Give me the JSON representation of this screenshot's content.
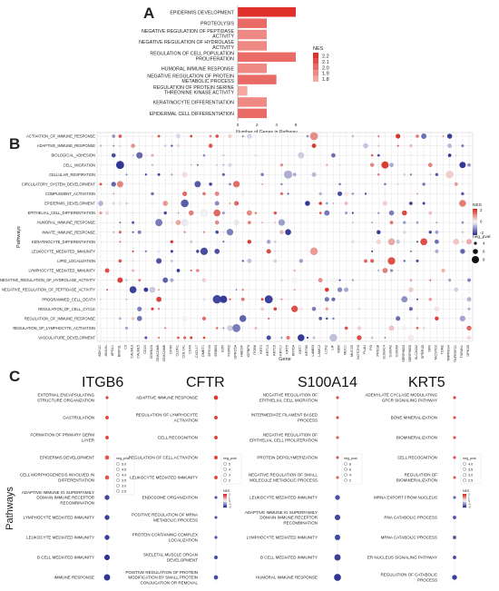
{
  "panels": {
    "a": "A",
    "b": "B",
    "c": "C"
  },
  "colors": {
    "red": "#d73027",
    "blue": "#313695",
    "white": "#f7f7f7",
    "grid": "#e4e4e4"
  },
  "chart_data": [
    {
      "panel": "A",
      "type": "bar",
      "orientation": "horizontal",
      "categories": [
        "EPIDERMIS DEVELOPMENT",
        "PROTEOLYSIS",
        "NEGATIVE REGULATION OF PEPTIDASE ACTIVITY",
        "NEGATIVE REGULATION OF HYDROLASE ACTIVITY",
        "REGULATION OF CELL POPULATION PROLIFERATION",
        "HUMORAL IMMUNE RESPONSE",
        "NEGATIVE REGULATION OF PROTEIN METABOLIC PROCESS",
        "REGULATION OF PROTEIN SERINE THREONINE KINASE ACTIVITY",
        "KERATINOCYTE DIFFERENTIATION",
        "EPIDERMAL CELL DIFFERENTIATION"
      ],
      "values": [
        6,
        3,
        3,
        3,
        6,
        3,
        4,
        1,
        3,
        3
      ],
      "nes": [
        2.2,
        2.0,
        1.9,
        1.9,
        2.0,
        1.9,
        2.0,
        1.8,
        1.9,
        2.0
      ],
      "xlabel": "Number of Genes in Pathway",
      "xlim": [
        0,
        6
      ],
      "xticks": [
        "0",
        "2",
        "4",
        "6"
      ],
      "legend": {
        "title": "NES",
        "ticks": [
          "2.2",
          "2.1",
          "2.0",
          "1.9",
          "1.8"
        ],
        "placement": "right"
      }
    },
    {
      "panel": "B",
      "type": "scatter",
      "subtype": "dot-plot",
      "xlabel": "Gene",
      "ylabel": "Pathways",
      "rows": [
        "ACTIVATION_OF_IMMUNE_RESPONSE",
        "ADAPTIVE_IMMUNE_RESPONSE",
        "BIOLOGICAL_ADHESION",
        "CELL_MIGRATION",
        "CELLULAR_RESPIRATION",
        "CIRCULATORY_SYSTEM_DEVELOPMENT",
        "COMPLEMENT_ACTIVATION",
        "EPIDERMIS_DEVELOPMENT",
        "EPITHELIAL_CELL_DIFFERENTIATION",
        "HUMORAL_IMMUNE_RESPONSE",
        "INNATE_IMMUNE_RESPONSE",
        "KERATINOCYTE_DIFFERENTIATION",
        "LEUKOCYTE_MEDIATED_IMMUNITY",
        "LIPID_LOCALIZATION",
        "LYMPHOCYTE_MEDIATED_IMMUNITY",
        "NEGATIVE_REGULATION_OF_HYDROLASE_ACTIVITY",
        "NEGATIVE_REGULATION_OF_PEPTIDASE_ACTIVITY",
        "PROGRAMMED_CELL_DEATH",
        "REGULATION_OF_CELL_CYCLE",
        "REGULATION_OF_IMMUNE_RESPONSE",
        "REGULATION_OF_LYMPHOCYTE_ACTIVATION",
        "VASCULATURE_DEVELOPMENT"
      ],
      "columns": [
        "ADH1C",
        "ANXA1",
        "APOL1",
        "BNIP3L",
        "C3",
        "CALML3",
        "CALML5",
        "CD24",
        "CDKN2A",
        "CEACAM5",
        "CEACAM6",
        "CFTR",
        "CLDN1",
        "COL7A1",
        "CSTA",
        "CXCL17",
        "DMBT1",
        "EPHX3",
        "ERBB3",
        "EZR",
        "FGFR2",
        "GPRC5A",
        "HBEGF",
        "IGFBP3",
        "ITGB6",
        "KRT4",
        "KRT13",
        "KRT15",
        "KRT17",
        "KRT5",
        "KRT6A",
        "KRT7",
        "KRT80",
        "LAMB3",
        "LAMC2",
        "LCN2",
        "LIF",
        "MDK",
        "MUC1",
        "MUC20",
        "NOTCH3",
        "PLAU",
        "PI3",
        "PRSS8",
        "S100A14",
        "S100A2",
        "S100A9",
        "SERPINB3",
        "SERPINB5",
        "SLC34A2",
        "SPRR1B",
        "SFN",
        "TACSTD2",
        "TGM2",
        "TMPRSS4",
        "TNFRSF21",
        "TSPAN1",
        "UPK1B"
      ],
      "points_note": "dots colored by NES, sized by neg_pval",
      "legend_nes": {
        "title": "NES",
        "ticks": [
          "2",
          "0",
          "-2"
        ]
      },
      "legend_size": {
        "title": "neg_pval",
        "ticks": [
          "4",
          "6",
          "8"
        ]
      }
    },
    {
      "panel": "C",
      "type": "scatter",
      "subtype": "dot-plot",
      "ylabel": "Pathways",
      "subplots": [
        {
          "title": "ITGB6",
          "pathways": [
            "EXTERNAL ENCAPSULATING STRUCTURE ORGANIZATION",
            "GASTRULATION",
            "FORMATION OF PRIMARY GERM LAYER",
            "EPIDERMIS DEVELOPMENT",
            "CELL MORPHOGENESIS INVOLVED IN DIFFERENTIATION",
            "ADAPTIVE IMMUNE IG SUPERFAMILY DOMAIN IMMUNE RECEPTOR RECOMBINATION",
            "LYMPHOCYTE MEDIATED IMMUNITY",
            "LEUKOCYTE MEDIATED IMMUNITY",
            "B CELL MEDIATED IMMUNITY",
            "IMMUNE RESPONSE"
          ],
          "nes": [
            2.0,
            1.9,
            1.9,
            1.8,
            1.8,
            -2.0,
            -2.1,
            -2.1,
            -2.2,
            -2.4
          ],
          "neg_pval": [
            2.5,
            3.0,
            3.0,
            3.5,
            3.5,
            4.0,
            4.0,
            4.0,
            4.5,
            5.0
          ],
          "legend_size": {
            "title": "neg_pval",
            "ticks": [
              "5.0",
              "4.5",
              "4.0",
              "3.5",
              "3.0",
              "2.5"
            ]
          }
        },
        {
          "title": "CFTR",
          "pathways": [
            "ADAPTIVE IMMUNE RESPONSE",
            "REGULATION OF LYMPHOCYTE ACTIVATION",
            "CELL RECOGNITION",
            "REGULATION OF CELL ACTIVATION",
            "LEUKOCYTE MEDIATED IMMUNITY",
            "ENDOSOME ORGANIZATION",
            "POSITIVE REGULATION OF MRNA METABOLIC PROCESS",
            "PROTEIN CONTAINING COMPLEX LOCALIZATION",
            "SKELETAL MUSCLE ORGAN DEVELOPMENT",
            "POSITIVE REGULATION OF PROTEIN MODIFICATION BY SMALL PROTEIN CONJUGATION OR REMOVAL"
          ],
          "nes": [
            2.1,
            2.0,
            2.0,
            2.0,
            1.9,
            -1.8,
            -1.8,
            -1.9,
            -2.0,
            -2.0
          ],
          "neg_pval": [
            3.5,
            3.0,
            3.0,
            3.0,
            3.0,
            2.5,
            2.5,
            2.5,
            3.0,
            3.5
          ],
          "legend_size": {
            "title": "neg_pval",
            "ticks": [
              "5",
              "4",
              "3",
              "2"
            ]
          },
          "legend_nes": {
            "title": "NES",
            "ticks": [
              "2",
              "1",
              "0",
              "-1",
              "-2"
            ]
          }
        },
        {
          "title": "S100A14",
          "pathways": [
            "NEGATIVE REGULATION OF EPITHELIAL CELL MIGRATION",
            "INTERMEDIATE FILAMENT BASED PROCESS",
            "NEGATIVE REGULATION OF EPITHELIAL CELL PROLIFERATION",
            "PROTEIN DEPOLYMERIZATION",
            "NEGATIVE REGULATION OF SMALL MOLECULE METABOLIC PROCESS",
            "LEUKOCYTE MEDIATED IMMUNITY",
            "ADAPTIVE IMMUNE IG SUPERFAMILY DOMAIN IMMUNE RECEPTOR RECOMBINATION",
            "LYMPHOCYTE MEDIATED IMMUNITY",
            "B CELL MEDIATED IMMUNITY",
            "HUMORAL IMMUNE RESPONSE"
          ],
          "nes": [
            1.8,
            1.8,
            1.7,
            1.7,
            1.6,
            -1.9,
            -2.0,
            -2.0,
            -2.1,
            -2.2
          ],
          "neg_pval": [
            2.5,
            2.5,
            2.5,
            2.5,
            2.5,
            4.0,
            4.5,
            4.5,
            5.0,
            5.5
          ],
          "legend_size": {
            "title": "neg_pval",
            "ticks": [
              "8",
              "6",
              "4",
              "2"
            ]
          }
        },
        {
          "title": "KRT5",
          "pathways": [
            "ADENYLATE CYCLASE MODULATING GPCR SIGNALING PATHWAY",
            "BONE MINERALIZATION",
            "BIOMINERALIZATION",
            "CELL RECOGNITION",
            "REGULATION OF BIOMINERALIZATION",
            "MRNA EXPORT FROM NUCLEUS",
            "RNA CATABOLIC PROCESS",
            "MRNA CATABOLIC PROCESS",
            "ER NUCLEUS SIGNALING PATHWAY",
            "REGULATION OF CATABOLIC PROCESS"
          ],
          "nes": [
            1.9,
            1.8,
            1.8,
            1.8,
            1.7,
            -1.7,
            -1.8,
            -1.8,
            -1.9,
            -2.1
          ],
          "neg_pval": [
            2.5,
            2.5,
            2.5,
            2.5,
            2.5,
            2.5,
            3.0,
            3.0,
            3.0,
            4.0
          ],
          "legend_size": {
            "title": "neg_pval",
            "ticks": [
              "4.0",
              "3.5",
              "3.0",
              "2.5"
            ]
          },
          "legend_nes": {
            "title": "NES",
            "ticks": [
              "2",
              "1",
              "0",
              "-1",
              "-2"
            ]
          }
        }
      ]
    }
  ]
}
